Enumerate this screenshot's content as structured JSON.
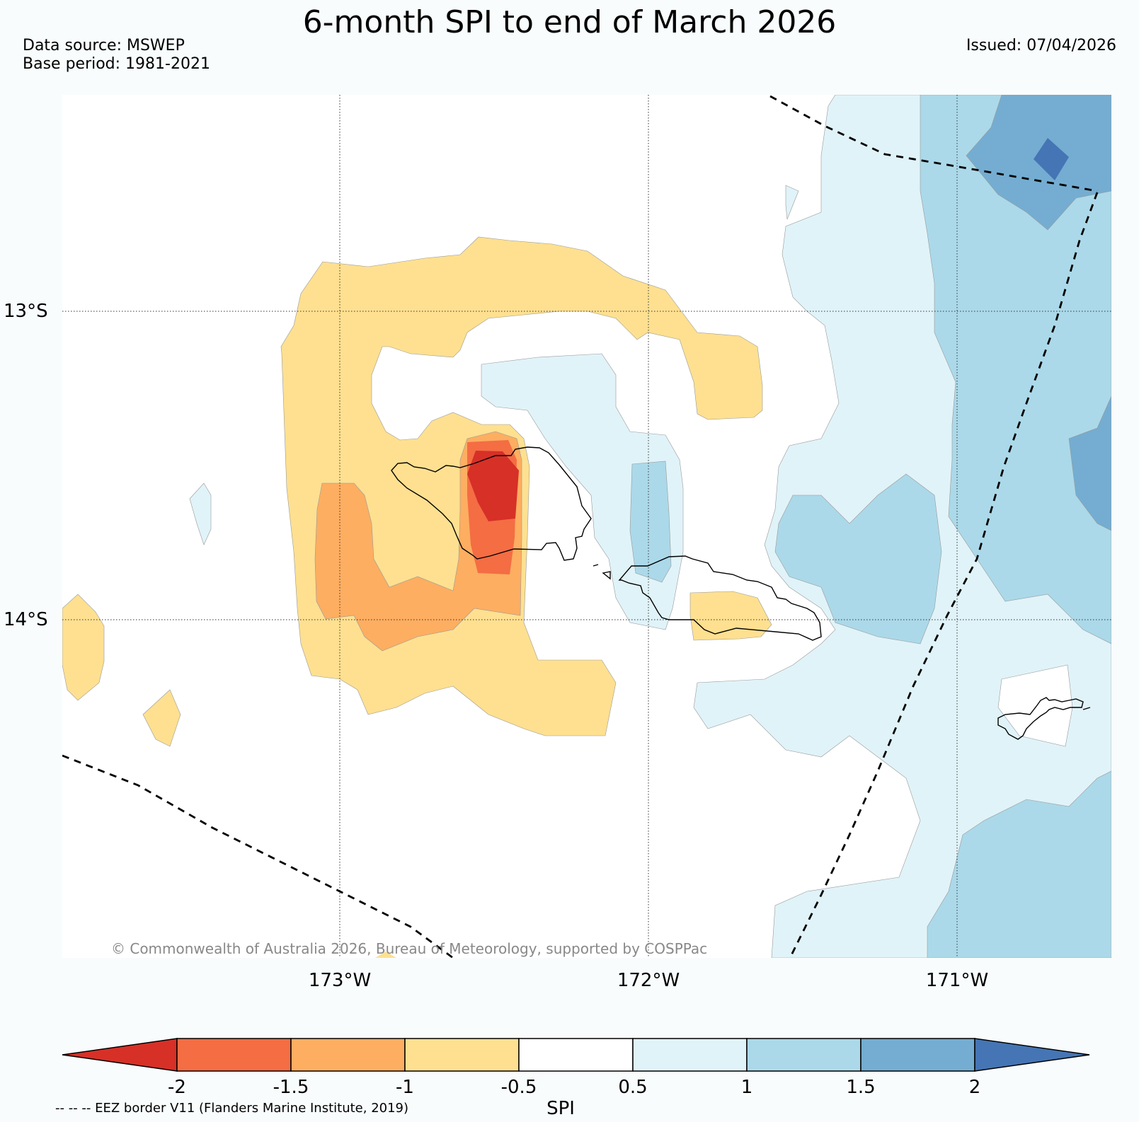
{
  "title": "6-month SPI to end of March 2026",
  "data_source": "Data source: MSWEP",
  "base_period": "Base period: 1981-2021",
  "issued": "Issued: 07/04/2026",
  "copyright": "© Commonwealth of Australia 2026, Bureau of Meteorology, supported by COSPPac",
  "axes": {
    "lat_labels": [
      "13°S",
      "14°S"
    ],
    "lon_labels": [
      "173°W",
      "172°W",
      "171°W"
    ]
  },
  "colorbar": {
    "label": "SPI",
    "ticks": [
      "-2",
      "-1.5",
      "-1",
      "-0.5",
      "0.5",
      "1",
      "1.5",
      "2"
    ],
    "colors": [
      "#d73027",
      "#f46d43",
      "#fdae61",
      "#fee090",
      "#ffffff",
      "#e0f3f8",
      "#abd9e9",
      "#74add1",
      "#4575b4"
    ]
  },
  "eez_note": "-- -- -- EEZ border V11 (Flanders Marine Institute, 2019)",
  "legend_colors": {
    "very_dry": "#d73027",
    "dry": "#f46d43",
    "moderately_dry": "#fdae61",
    "slightly_dry": "#fee090",
    "normal": "#ffffff",
    "slightly_wet": "#e0f3f8",
    "moderately_wet": "#abd9e9",
    "wet": "#74add1",
    "very_wet": "#4575b4"
  }
}
